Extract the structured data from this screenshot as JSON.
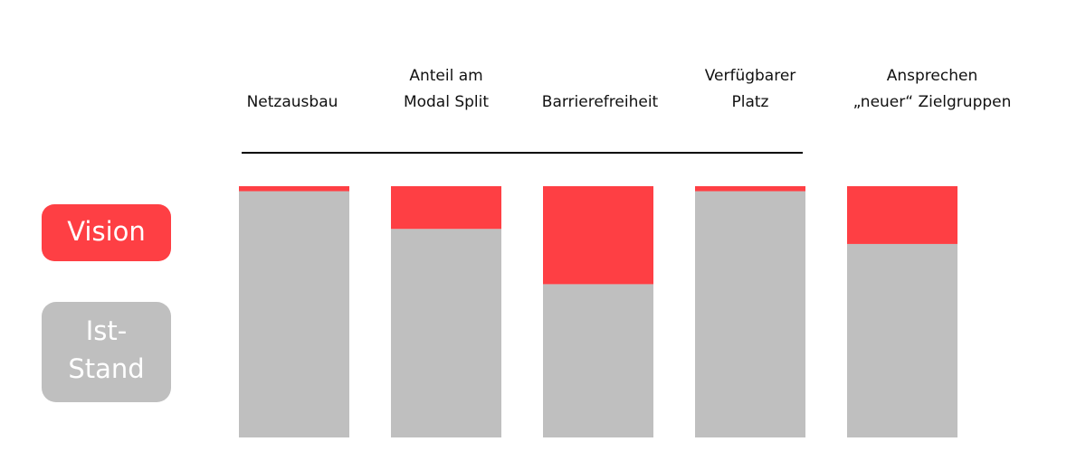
{
  "colors": {
    "vision": "#fe3f44",
    "ist_stand": "#bfbfbf",
    "rule": "#000000",
    "legend_text": "#ffffff"
  },
  "legend": {
    "vision_label": "Vision",
    "ist_stand_lines": [
      "Ist-",
      "Stand"
    ]
  },
  "chart_data": {
    "type": "bar",
    "stacked": true,
    "categories": [
      [
        "Netzausbau"
      ],
      [
        "Anteil am",
        "Modal Split"
      ],
      [
        "Barrierefreiheit"
      ],
      [
        "Verfügbarer",
        "Platz"
      ],
      [
        "Ansprechen",
        "„neuer“ Zielgruppen"
      ]
    ],
    "series": [
      {
        "name": "Ist-Stand",
        "values": [
          98,
          83,
          61,
          98,
          77
        ]
      },
      {
        "name": "Vision",
        "values": [
          2,
          17,
          39,
          2,
          23
        ]
      }
    ],
    "ylim": [
      0,
      100
    ],
    "grid": false,
    "legend_placement": "left"
  }
}
